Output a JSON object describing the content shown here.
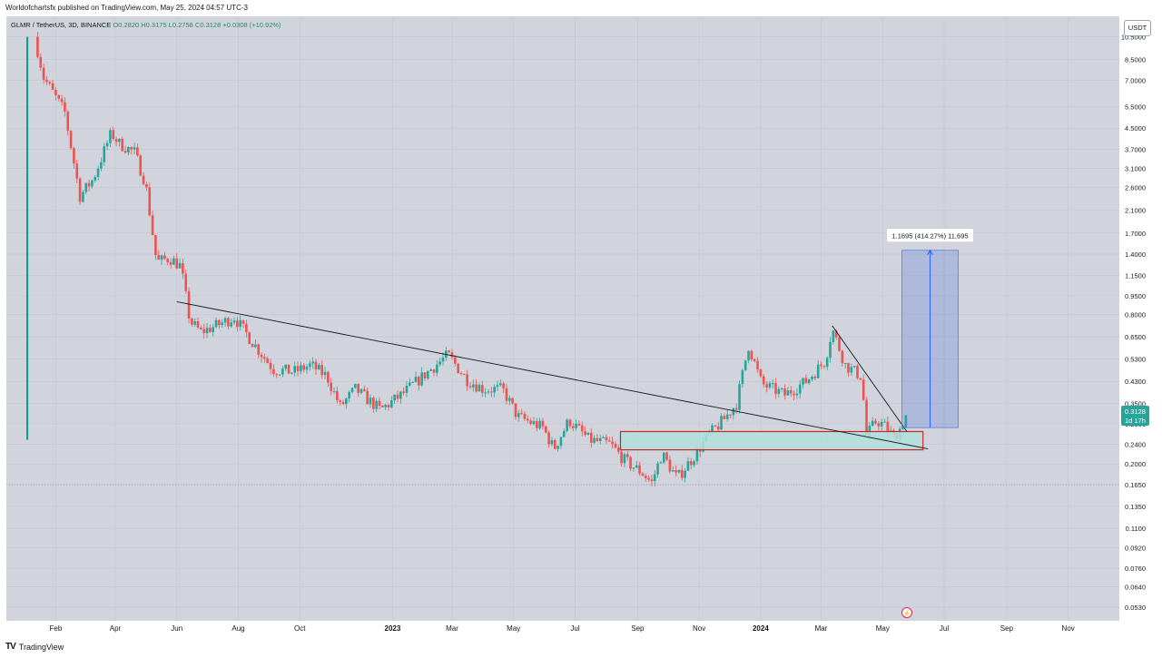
{
  "header": {
    "published": "Worldofchartsfx published on TradingView.com, May 25, 2024 04:57 UTC-3"
  },
  "legend": {
    "symbol": "GLMR / TetherUS, 3D, BINANCE",
    "ohlc": "O0.2820  H0.3175  L0.2758  C0.3128  +0.0308 (+10.92%)"
  },
  "currency_label": "USDT",
  "measure_label": "1.1695 (414.27%) 11,695",
  "price_tag": {
    "value": "0.3128",
    "countdown": "1d 17h"
  },
  "footer": {
    "brand": "TradingView"
  },
  "colors": {
    "up": "#26a69a",
    "down": "#ef5350",
    "background": "#d1d4dc",
    "measure": "#5b7fd9",
    "zone": "#b2dfdb"
  },
  "chart_data": {
    "type": "candlestick",
    "y_scale": "log",
    "y_ticks": [
      "10.5000",
      "8.5000",
      "7.0000",
      "5.5000",
      "4.5000",
      "3.7000",
      "3.1000",
      "2.6000",
      "2.1000",
      "1.7000",
      "1.4000",
      "1.1500",
      "0.9500",
      "0.8000",
      "0.6500",
      "0.5300",
      "0.4300",
      "0.3500",
      "0.2900",
      "0.2400",
      "0.2000",
      "0.1650",
      "0.1350",
      "0.1100",
      "0.0920",
      "0.0760",
      "0.0640",
      "0.0530"
    ],
    "x_ticks": [
      "Feb",
      "Apr",
      "Jun",
      "Aug",
      "Oct",
      "2023",
      "Mar",
      "May",
      "Jul",
      "Sep",
      "Nov",
      "2024",
      "Mar",
      "May",
      "Jul",
      "Sep",
      "Nov"
    ],
    "x_tick_dates": [
      "2022-02-01",
      "2022-04-01",
      "2022-06-01",
      "2022-08-01",
      "2022-10-01",
      "2023-01-01",
      "2023-03-01",
      "2023-05-01",
      "2023-07-01",
      "2023-09-01",
      "2023-11-01",
      "2024-01-01",
      "2024-03-01",
      "2024-05-01",
      "2024-07-01",
      "2024-09-01",
      "2024-11-01"
    ],
    "price_path": [
      [
        "2022-01-11",
        10.5
      ],
      [
        "2022-01-20",
        7.2
      ],
      [
        "2022-02-10",
        5.2
      ],
      [
        "2022-02-25",
        2.4
      ],
      [
        "2022-03-10",
        2.8
      ],
      [
        "2022-03-28",
        4.3
      ],
      [
        "2022-04-05",
        3.9
      ],
      [
        "2022-04-20",
        3.6
      ],
      [
        "2022-05-01",
        2.7
      ],
      [
        "2022-05-12",
        1.3
      ],
      [
        "2022-05-25",
        1.35
      ],
      [
        "2022-06-05",
        1.25
      ],
      [
        "2022-06-14",
        0.75
      ],
      [
        "2022-06-25",
        0.68
      ],
      [
        "2022-07-10",
        0.72
      ],
      [
        "2022-07-28",
        0.78
      ],
      [
        "2022-08-15",
        0.62
      ],
      [
        "2022-09-05",
        0.48
      ],
      [
        "2022-09-25",
        0.47
      ],
      [
        "2022-10-12",
        0.5
      ],
      [
        "2022-10-28",
        0.45
      ],
      [
        "2022-11-10",
        0.34
      ],
      [
        "2022-11-25",
        0.4
      ],
      [
        "2022-12-20",
        0.33
      ],
      [
        "2023-01-10",
        0.38
      ],
      [
        "2023-02-05",
        0.47
      ],
      [
        "2023-02-25",
        0.55
      ],
      [
        "2023-03-15",
        0.44
      ],
      [
        "2023-04-01",
        0.4
      ],
      [
        "2023-04-20",
        0.4
      ],
      [
        "2023-05-05",
        0.31
      ],
      [
        "2023-05-30",
        0.28
      ],
      [
        "2023-06-10",
        0.23
      ],
      [
        "2023-06-25",
        0.3
      ],
      [
        "2023-07-15",
        0.25
      ],
      [
        "2023-08-05",
        0.24
      ],
      [
        "2023-08-20",
        0.205
      ],
      [
        "2023-09-05",
        0.185
      ],
      [
        "2023-09-15",
        0.168
      ],
      [
        "2023-09-25",
        0.22
      ],
      [
        "2023-10-10",
        0.175
      ],
      [
        "2023-10-25",
        0.21
      ],
      [
        "2023-11-10",
        0.26
      ],
      [
        "2023-11-25",
        0.3
      ],
      [
        "2023-12-08",
        0.35
      ],
      [
        "2023-12-20",
        0.6
      ],
      [
        "2024-01-02",
        0.42
      ],
      [
        "2024-01-25",
        0.38
      ],
      [
        "2024-02-15",
        0.43
      ],
      [
        "2024-03-05",
        0.52
      ],
      [
        "2024-03-12",
        0.7
      ],
      [
        "2024-03-25",
        0.5
      ],
      [
        "2024-04-10",
        0.45
      ],
      [
        "2024-04-15",
        0.26
      ],
      [
        "2024-04-25",
        0.3
      ],
      [
        "2024-05-05",
        0.28
      ],
      [
        "2024-05-12",
        0.255
      ],
      [
        "2024-05-19",
        0.28
      ],
      [
        "2024-05-24",
        0.3128
      ]
    ],
    "green_line": {
      "date": "2022-01-11",
      "low": 0.25,
      "high": 10.5
    },
    "trendline_long": [
      [
        "2022-06-01",
        0.9
      ],
      [
        "2024-06-15",
        0.23
      ]
    ],
    "trendline_short": [
      [
        "2024-03-12",
        0.72
      ],
      [
        "2024-05-25",
        0.27
      ]
    ],
    "support_zone": {
      "from": "2023-08-15",
      "to": "2024-06-10",
      "low": 0.228,
      "high": 0.27
    },
    "measure_box": {
      "from": "2024-05-20",
      "to": "2024-07-15",
      "low": 0.28,
      "high": 1.45,
      "change": 1.1695,
      "change_pct": 414.27
    },
    "current_price": 0.3128
  }
}
